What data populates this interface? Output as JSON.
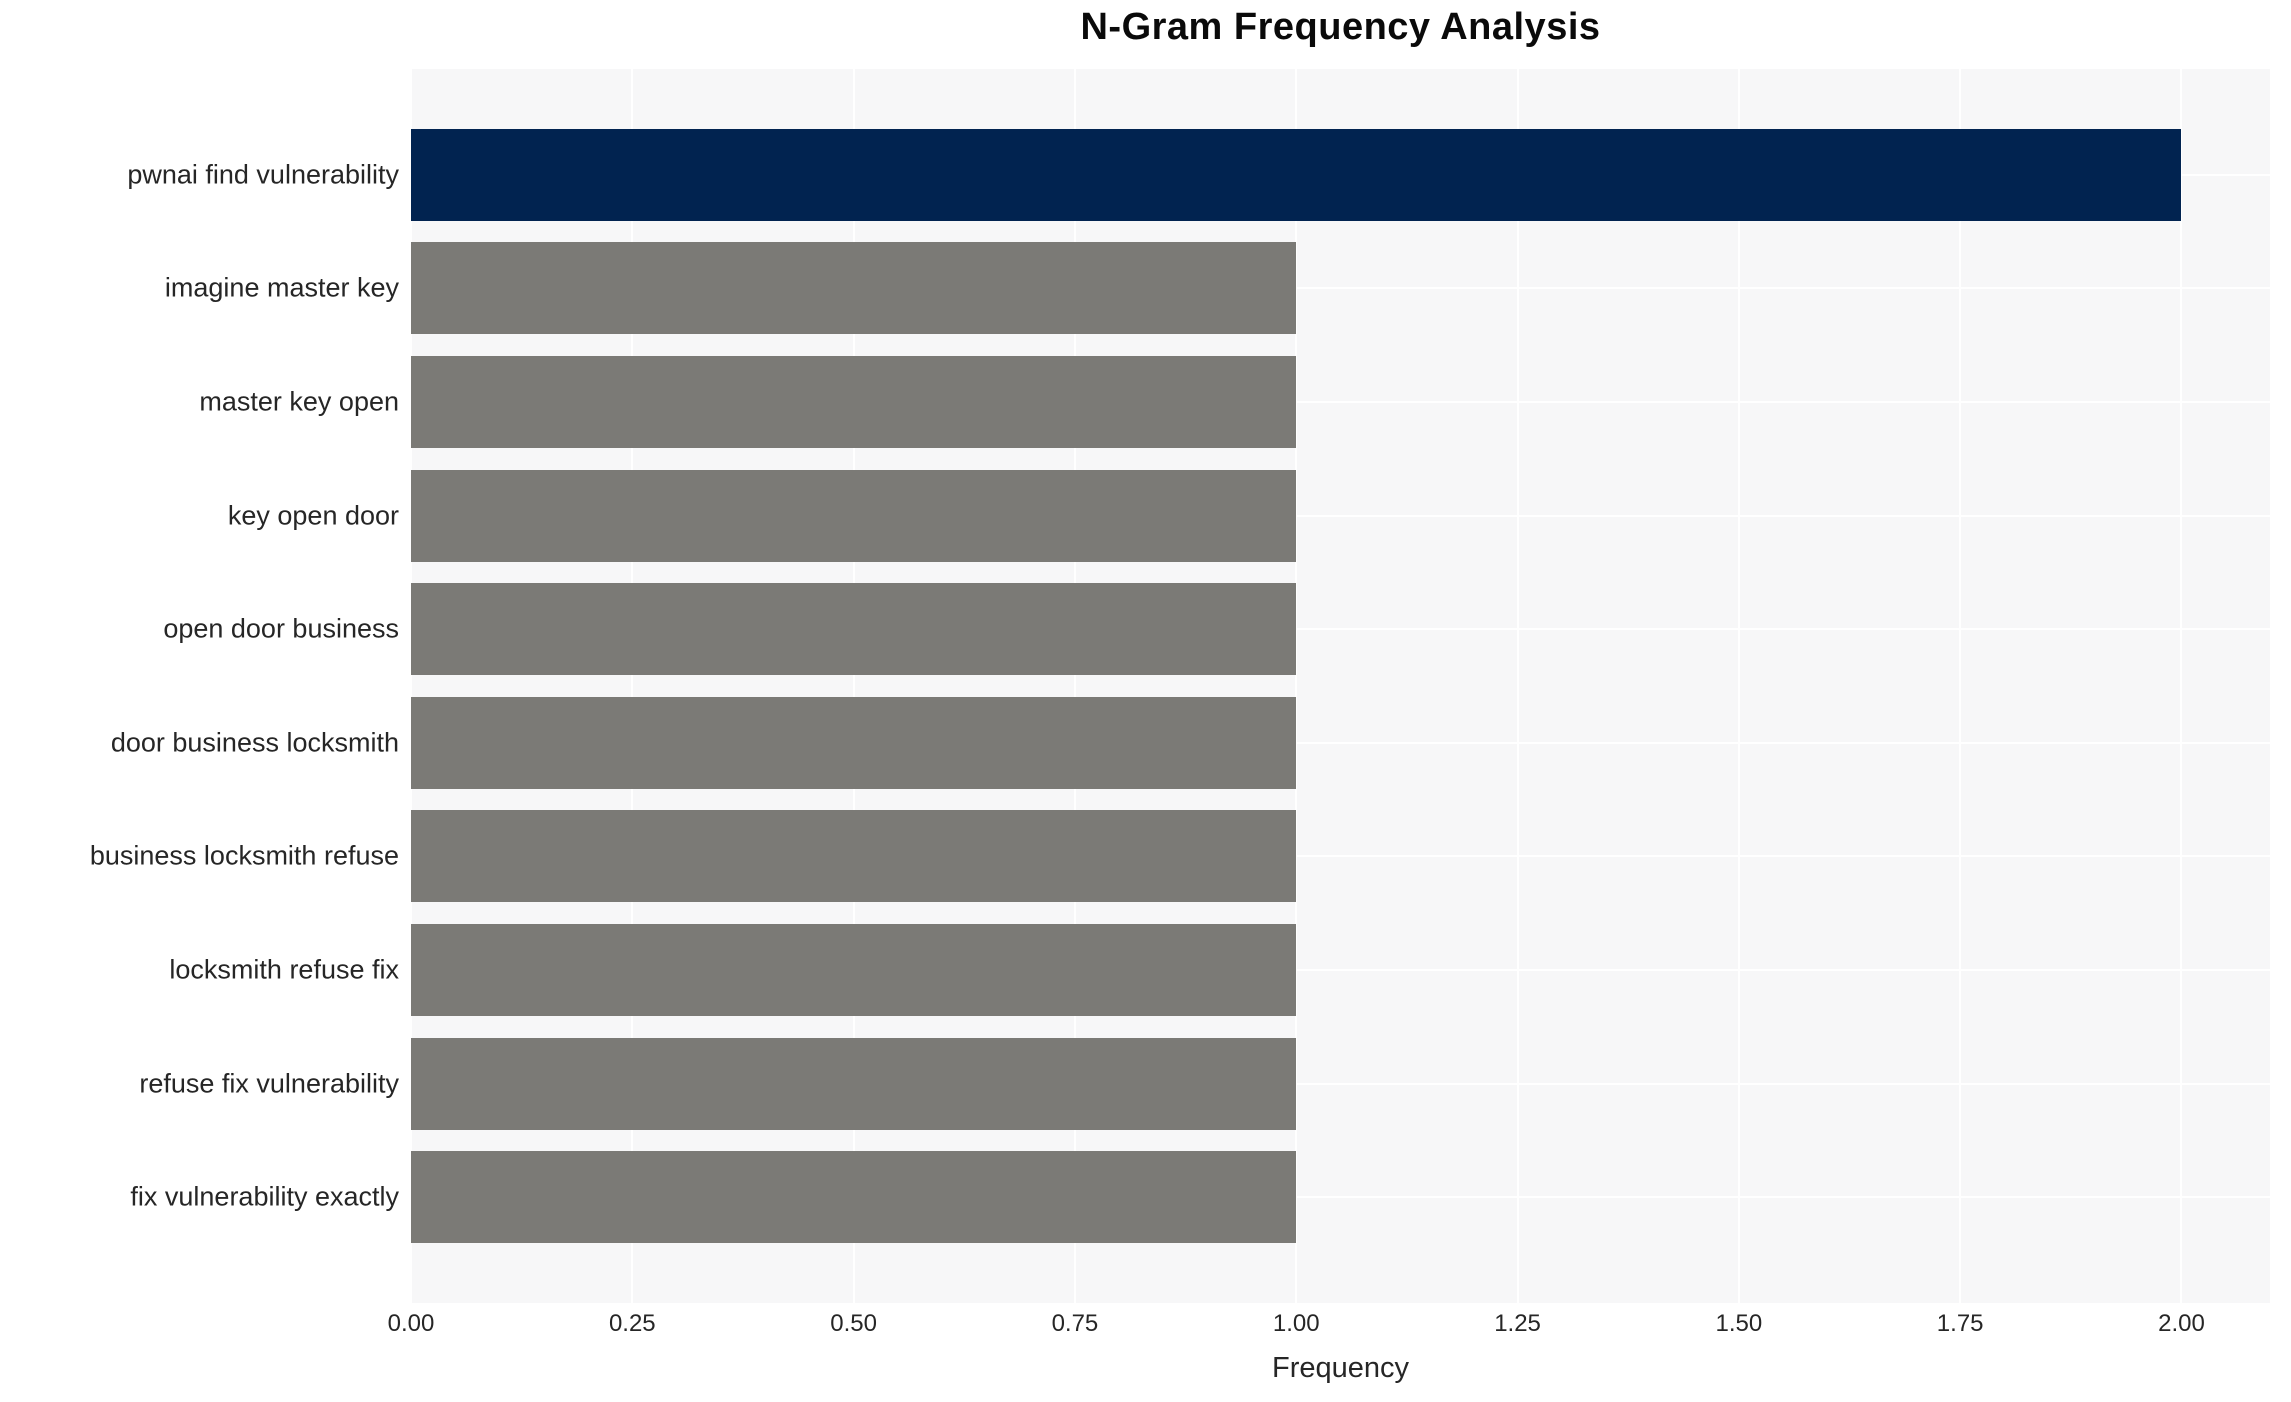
{
  "chart_data": {
    "type": "bar",
    "orientation": "horizontal",
    "title": "N-Gram Frequency Analysis",
    "xlabel": "Frequency",
    "ylabel": "",
    "categories": [
      "pwnai find vulnerability",
      "imagine master key",
      "master key open",
      "key open door",
      "open door business",
      "door business locksmith",
      "business locksmith refuse",
      "locksmith refuse fix",
      "refuse fix vulnerability",
      "fix vulnerability exactly"
    ],
    "values": [
      2,
      1,
      1,
      1,
      1,
      1,
      1,
      1,
      1,
      1
    ],
    "xlim": [
      0,
      2.1
    ],
    "xticks": {
      "values": [
        0,
        0.25,
        0.5,
        0.75,
        1.0,
        1.25,
        1.5,
        1.75,
        2.0
      ],
      "labels": [
        "0.00",
        "0.25",
        "0.50",
        "0.75",
        "1.00",
        "1.25",
        "1.50",
        "1.75",
        "2.00"
      ]
    },
    "grid": "white gridlines on light panel, vertical at x ticks, horizontal at bar centers",
    "legend_position": "none",
    "colors": {
      "highlight_bar": "#012350",
      "default_bar": "#7b7a76",
      "panel_background": "#f7f7f8",
      "gridline": "#ffffff",
      "tick_text": "#262626",
      "title_text": "#0a0a0a"
    }
  }
}
